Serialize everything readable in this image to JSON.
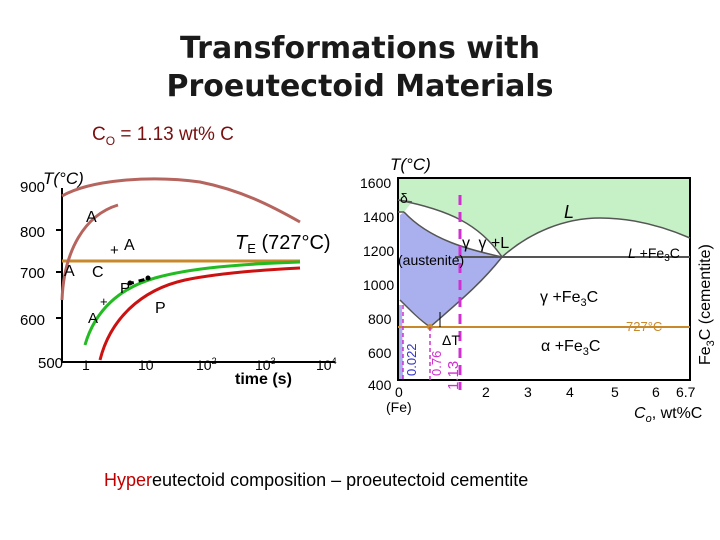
{
  "title_line1": "Transformations with",
  "title_line2": "Proeutectoid Materials",
  "co_label_main": "C",
  "co_label_sub": "O",
  "co_label_value": " = 1.13 wt% C",
  "ttt": {
    "y_axis_label": "T(°C)",
    "y_ticks": [
      "900",
      "800",
      "700",
      "600",
      "500"
    ],
    "x_ticks": [
      "1",
      "10",
      "10",
      "10",
      "10"
    ],
    "x_tick_exps": [
      "",
      "",
      "2",
      "3",
      "4"
    ],
    "x_axis_label": "time (s)",
    "te_label_prefix": "T",
    "te_label_sub": "E",
    "te_label_value": " (727°C)",
    "region_labels": {
      "a_top": "A",
      "a_plus": "+",
      "a_mid": "A",
      "a_left": "A",
      "c": "C",
      "p_small": "P",
      "p_big": "P",
      "a_low": "A",
      "plus_low": "+"
    }
  },
  "phase": {
    "y_axis_label": "T(°C)",
    "y_ticks": [
      "1600",
      "1400",
      "1200",
      "1000",
      "800",
      "600",
      "400"
    ],
    "x_ticks": [
      "0",
      "2",
      "3",
      "4",
      "5",
      "6",
      "6.7"
    ],
    "fe_label": "(Fe)",
    "x_axis_label": "C",
    "x_axis_label_sub": "o",
    "x_axis_label_unit": ", wt%C",
    "right_axis_label": "Fe",
    "right_axis_label_sub": "3",
    "right_axis_label_rest": "C (cementite)",
    "delta": "δ",
    "L": "L",
    "gamma": "γ",
    "gamma_L": "γ +L",
    "austenite": "(austenite)",
    "L_fe3c_a": "L",
    "L_fe3c_b": " +Fe",
    "L_fe3c_sub": "3",
    "L_fe3c_c": "C",
    "gamma_fe3c_a": "γ +Fe",
    "gamma_fe3c_sub": "3",
    "gamma_fe3c_c": "C",
    "alpha_fe3c_a": "α +Fe",
    "alpha_fe3c_sub": "3",
    "alpha_fe3c_c": "C",
    "eutectoid_temp": "727°C",
    "delta_t": "ΔT",
    "val_0022": "0.022",
    "val_076": "0.76",
    "val_113": "1.13"
  },
  "caption": {
    "highlight": "Hyper",
    "rest": "eutectoid composition – proeutectoid cementite"
  },
  "colors": {
    "title": "#1a1a1a",
    "co": "#7a0f0f",
    "eutectoid_line": "#c8892a",
    "curve_brown": "#b5655e",
    "curve_green": "#22bb22",
    "curve_red": "#cc1111",
    "gamma_fill": "#aab0ee",
    "liquid_fill": "#c6f0c6",
    "magenta": "#d030d0",
    "caption_highlight": "#c00000"
  }
}
